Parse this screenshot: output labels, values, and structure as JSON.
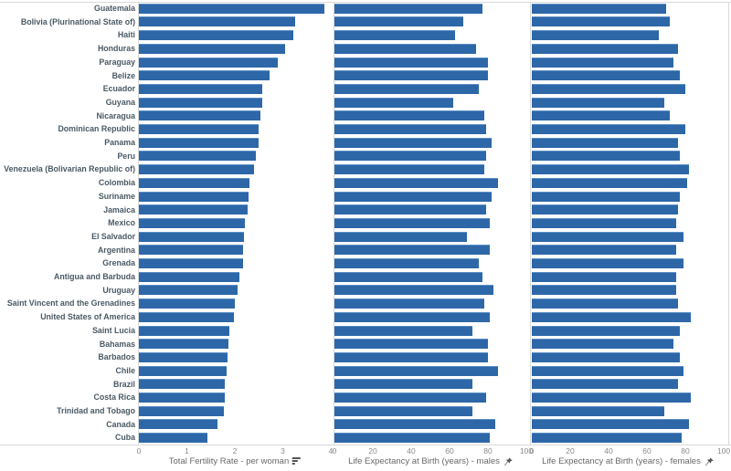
{
  "chart_data": {
    "type": "bar",
    "orientation": "horizontal",
    "title": "",
    "legend": "none",
    "grid": "off",
    "bar_color": "#2d67a8",
    "categories": [
      "Guatemala",
      "Bolivia (Plurinational State of)",
      "Haiti",
      "Honduras",
      "Paraguay",
      "Belize",
      "Ecuador",
      "Guyana",
      "Nicaragua",
      "Dominican Republic",
      "Panama",
      "Peru",
      "Venezuela (Bolivarian Republic of)",
      "Colombia",
      "Suriname",
      "Jamaica",
      "Mexico",
      "El Salvador",
      "Argentina",
      "Grenada",
      "Antigua and Barbuda",
      "Uruguay",
      "Saint Vincent and the Grenadines",
      "United States of America",
      "Saint Lucia",
      "Bahamas",
      "Barbados",
      "Chile",
      "Brazil",
      "Costa Rica",
      "Trinidad and Tobago",
      "Canada",
      "Cuba"
    ],
    "series": [
      {
        "name": "Total Fertility Rate - per woman",
        "icon": "sort-descending-icon",
        "axis": {
          "min": 0,
          "max": 4,
          "ticks": [
            0,
            1,
            2,
            3,
            4
          ]
        },
        "values": [
          3.86,
          3.26,
          3.21,
          3.04,
          2.89,
          2.72,
          2.58,
          2.57,
          2.54,
          2.5,
          2.49,
          2.44,
          2.4,
          2.3,
          2.28,
          2.27,
          2.21,
          2.19,
          2.17,
          2.17,
          2.09,
          2.05,
          2.0,
          1.98,
          1.89,
          1.86,
          1.84,
          1.82,
          1.79,
          1.79,
          1.77,
          1.64,
          1.42
        ]
      },
      {
        "name": "Life Expectancy at Birth (years) - males",
        "icon": "pin-icon",
        "axis": {
          "min": 0,
          "max": 100,
          "ticks": [
            0,
            20,
            40,
            60,
            80,
            100
          ]
        },
        "values": [
          77,
          67,
          63,
          74,
          80,
          80,
          75,
          62,
          78,
          79,
          82,
          79,
          78,
          85,
          82,
          79,
          81,
          69,
          81,
          75,
          77,
          83,
          78,
          81,
          72,
          80,
          80,
          85,
          72,
          79,
          72,
          84,
          81
        ]
      },
      {
        "name": "Life Expectancy at Birth (years) - females",
        "icon": "pin-icon",
        "axis": {
          "min": 0,
          "max": 100,
          "ticks": [
            0,
            20,
            40,
            60,
            80,
            100
          ]
        },
        "values": [
          70,
          72,
          66,
          76,
          74,
          77,
          80,
          69,
          72,
          80,
          76,
          77,
          82,
          81,
          77,
          76,
          75,
          79,
          75,
          79,
          75,
          75,
          76,
          83,
          77,
          74,
          77,
          79,
          76,
          83,
          69,
          82,
          78
        ]
      }
    ]
  }
}
